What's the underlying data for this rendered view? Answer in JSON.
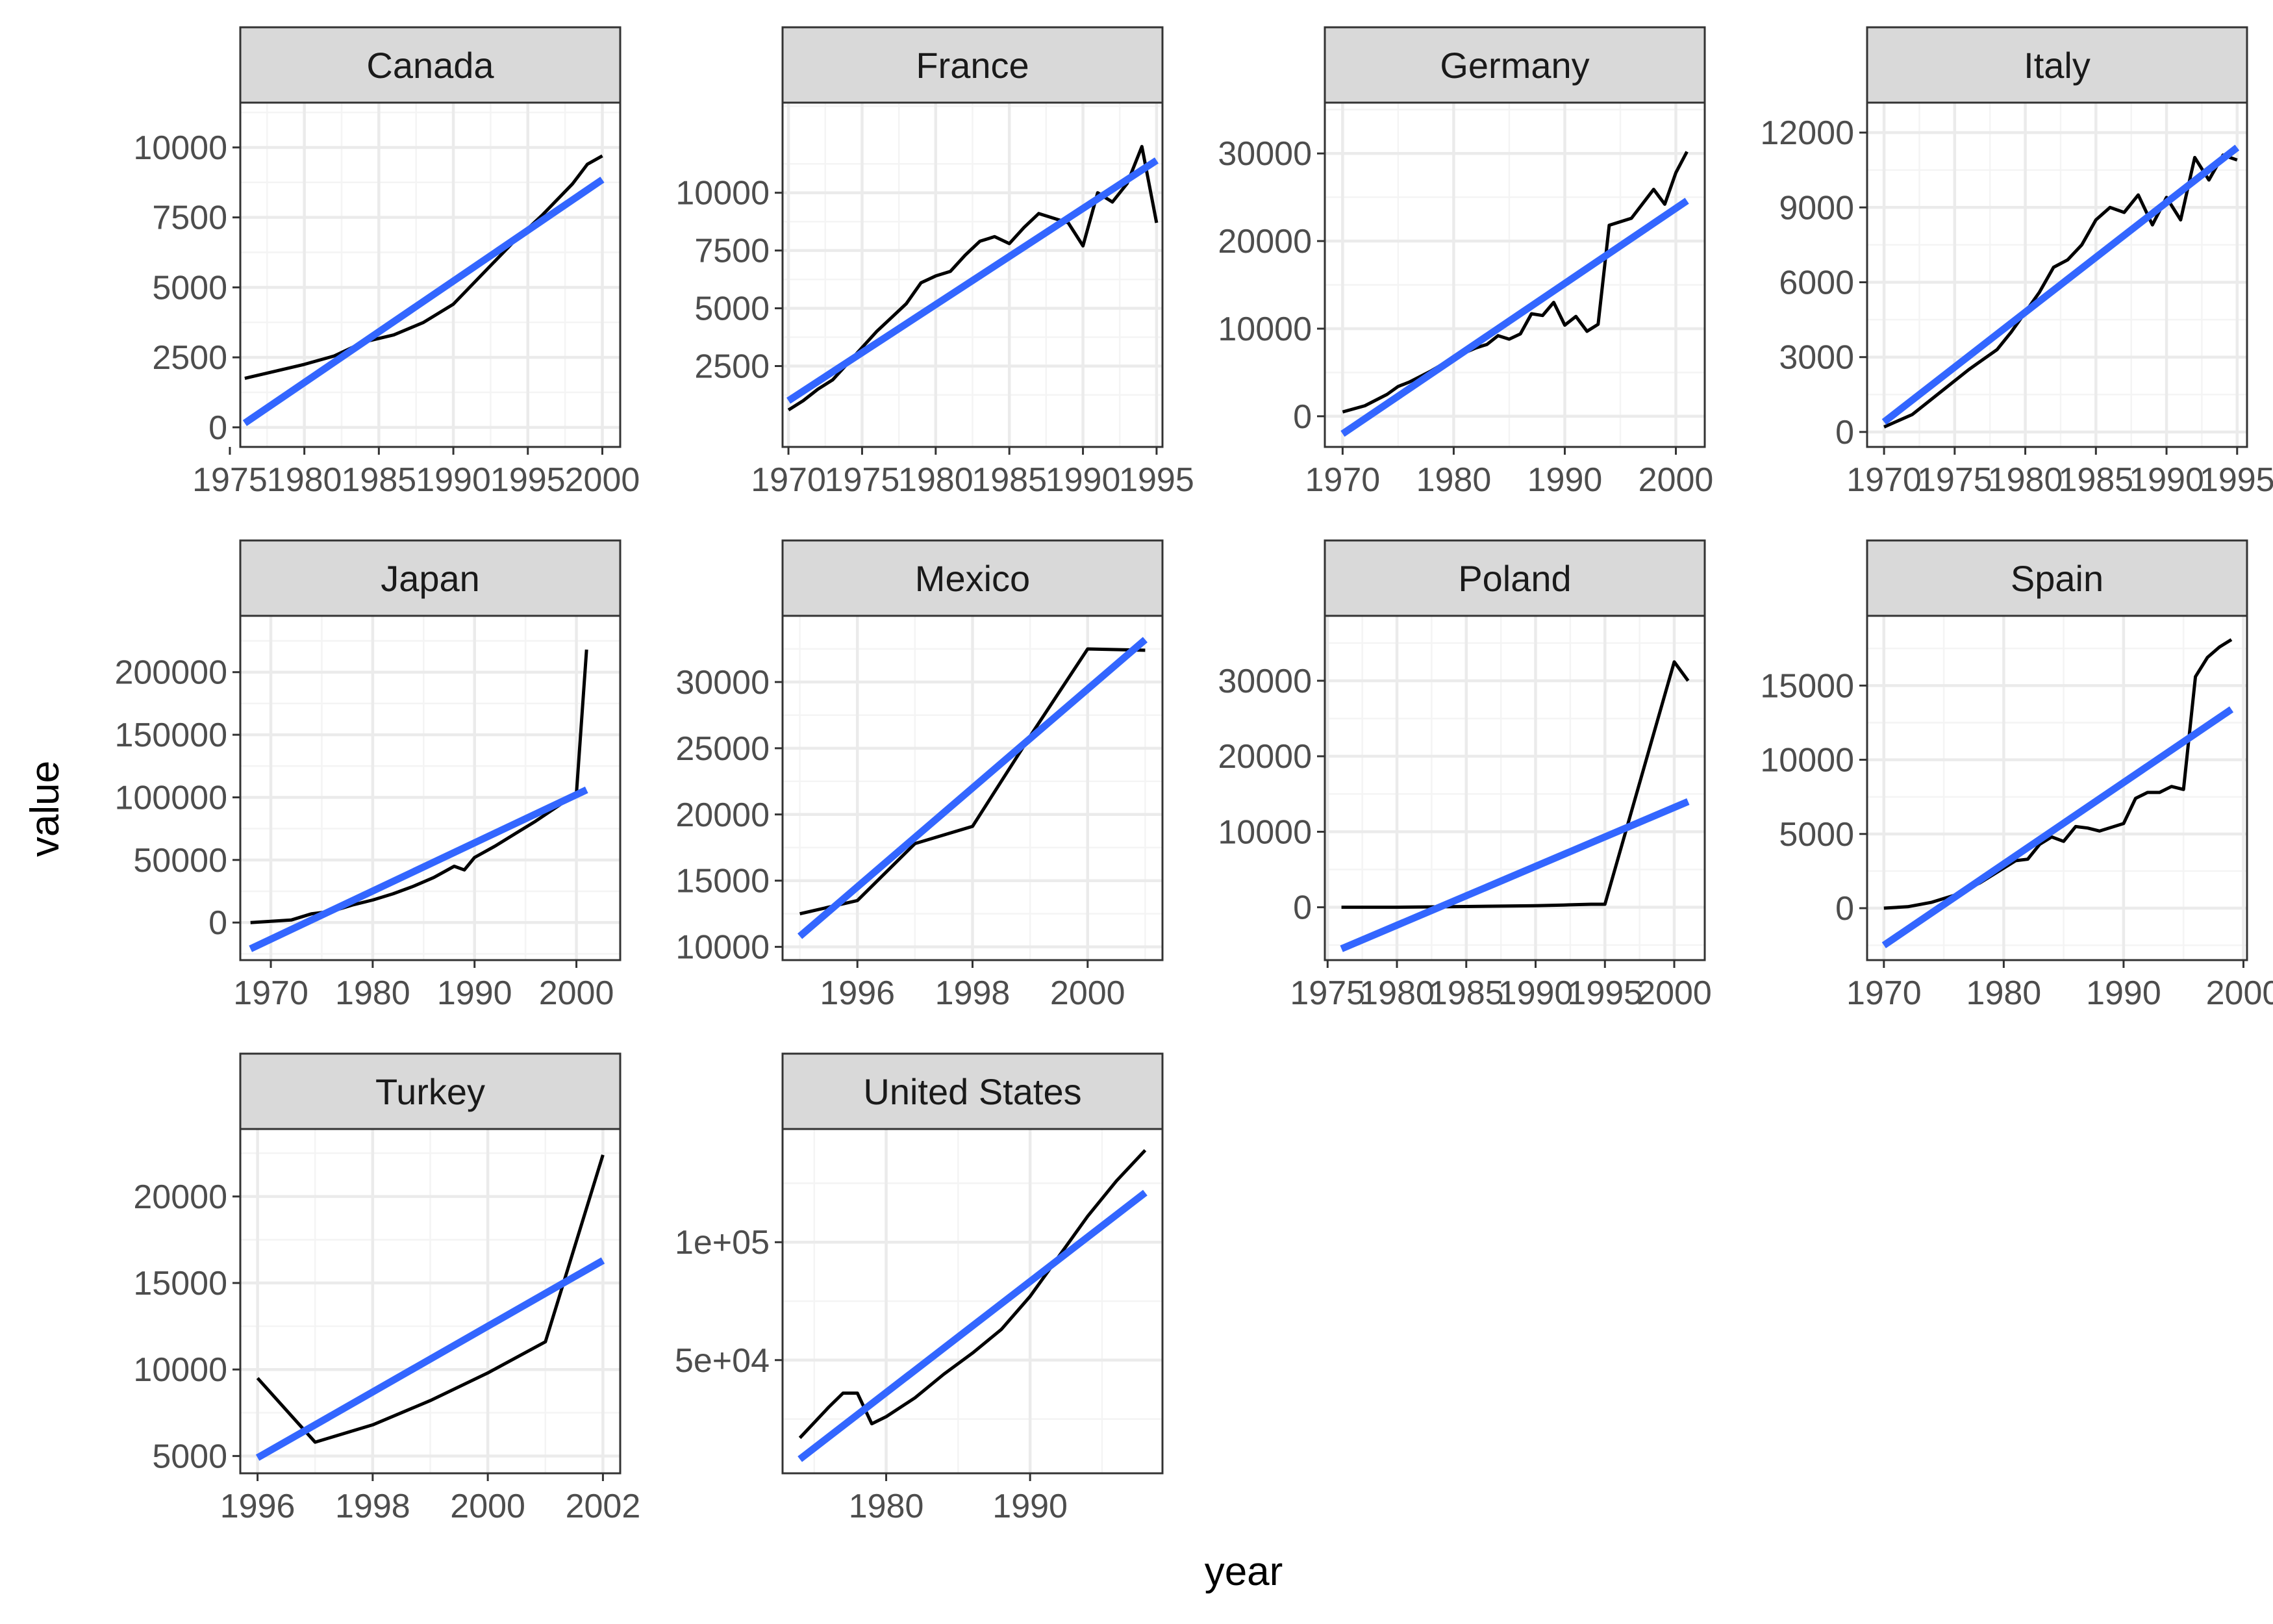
{
  "figure": {
    "xlabel": "year",
    "ylabel": "value"
  },
  "colors": {
    "panel_border": "#333333",
    "strip_fill": "#d9d9d9",
    "grid_major": "#ebebeb",
    "grid_minor": "#f4f4f4",
    "data_line": "#000000",
    "fit_line": "#3366ff"
  },
  "chart_data": [
    {
      "type": "line",
      "title": "Canada",
      "xlim": [
        1975.7,
        2001.2
      ],
      "ylim": [
        -700,
        11600
      ],
      "xticks": [
        1975,
        1980,
        1985,
        1990,
        1995,
        2000
      ],
      "yticks": [
        0,
        2500,
        5000,
        7500,
        10000
      ],
      "ytick_labels": [
        "0",
        "2500",
        "5000",
        "7500",
        "10000"
      ],
      "x": [
        1976,
        1978,
        1980,
        1982,
        1984,
        1986,
        1988,
        1990,
        1992,
        1994,
        1996,
        1998,
        1999,
        2000
      ],
      "y": [
        1750,
        2000,
        2250,
        2550,
        3050,
        3300,
        3750,
        4400,
        5500,
        6600,
        7600,
        8700,
        9400,
        9700
      ],
      "fit": {
        "x": [
          1976,
          2000
        ],
        "y": [
          150,
          8850
        ]
      }
    },
    {
      "type": "line",
      "title": "France",
      "xlim": [
        1969.6,
        1995.4
      ],
      "ylim": [
        -1000,
        13900
      ],
      "xticks": [
        1970,
        1975,
        1980,
        1985,
        1990,
        1995
      ],
      "yticks": [
        2500,
        5000,
        7500,
        10000
      ],
      "ytick_labels": [
        "2500",
        "5000",
        "7500",
        "10000"
      ],
      "x": [
        1970,
        1971,
        1972,
        1973,
        1974,
        1975,
        1976,
        1977,
        1978,
        1979,
        1980,
        1981,
        1982,
        1983,
        1984,
        1985,
        1986,
        1987,
        1988,
        1989,
        1990,
        1991,
        1992,
        1993,
        1994,
        1995
      ],
      "y": [
        600,
        1000,
        1500,
        1900,
        2600,
        3300,
        4000,
        4600,
        5200,
        6100,
        6400,
        6600,
        7300,
        7900,
        8100,
        7800,
        8500,
        9100,
        8900,
        8700,
        7700,
        10000,
        9600,
        10400,
        12000,
        8700
      ],
      "fit": {
        "x": [
          1970,
          1995
        ],
        "y": [
          1000,
          11400
        ]
      }
    },
    {
      "type": "line",
      "title": "Germany",
      "xlim": [
        1968.4,
        2002.6
      ],
      "ylim": [
        -3500,
        35800
      ],
      "xticks": [
        1970,
        1980,
        1990,
        2000
      ],
      "yticks": [
        0,
        10000,
        20000,
        30000
      ],
      "ytick_labels": [
        "0",
        "10000",
        "20000",
        "30000"
      ],
      "x": [
        1970,
        1972,
        1974,
        1975,
        1976,
        1978,
        1980,
        1982,
        1983,
        1984,
        1985,
        1986,
        1987,
        1988,
        1989,
        1990,
        1991,
        1992,
        1993,
        1994,
        1996,
        1998,
        1999,
        2000,
        2001
      ],
      "y": [
        500,
        1200,
        2500,
        3400,
        3900,
        5200,
        6700,
        7800,
        8200,
        9200,
        8800,
        9400,
        11700,
        11500,
        13000,
        10400,
        11400,
        9700,
        10500,
        21800,
        22600,
        25900,
        24200,
        27800,
        30200
      ],
      "fit": {
        "x": [
          1970,
          2001
        ],
        "y": [
          -2000,
          24600
        ]
      }
    },
    {
      "type": "line",
      "title": "Italy",
      "xlim": [
        1968.8,
        1995.7
      ],
      "ylim": [
        -600,
        13200
      ],
      "xticks": [
        1970,
        1975,
        1980,
        1985,
        1990,
        1995
      ],
      "yticks": [
        0,
        3000,
        6000,
        9000,
        12000
      ],
      "ytick_labels": [
        "0",
        "3000",
        "6000",
        "9000",
        "12000"
      ],
      "x": [
        1970,
        1972,
        1974,
        1976,
        1978,
        1979,
        1980,
        1981,
        1982,
        1983,
        1984,
        1985,
        1986,
        1987,
        1988,
        1989,
        1990,
        1991,
        1992,
        1993,
        1994,
        1995
      ],
      "y": [
        200,
        700,
        1600,
        2500,
        3300,
        4000,
        4800,
        5600,
        6600,
        6900,
        7500,
        8500,
        9000,
        8800,
        9500,
        8300,
        9400,
        8500,
        11000,
        10100,
        11100,
        10900
      ],
      "fit": {
        "x": [
          1970,
          1995
        ],
        "y": [
          400,
          11400
        ]
      }
    },
    {
      "type": "line",
      "title": "Japan",
      "xlim": [
        1967,
        2004.3
      ],
      "ylim": [
        -30000,
        245000
      ],
      "xticks": [
        1970,
        1980,
        1990,
        2000
      ],
      "yticks": [
        0,
        50000,
        100000,
        150000,
        200000
      ],
      "ytick_labels": [
        "0",
        "50000",
        "100000",
        "150000",
        "200000"
      ],
      "x": [
        1968,
        1970,
        1972,
        1974,
        1976,
        1978,
        1980,
        1982,
        1984,
        1986,
        1988,
        1989,
        1990,
        1992,
        1994,
        1996,
        1998,
        2000,
        2001
      ],
      "y": [
        0,
        1000,
        2000,
        7000,
        9000,
        14000,
        18000,
        23000,
        29000,
        36000,
        45000,
        42000,
        52000,
        61000,
        71000,
        81000,
        92000,
        103000,
        218000
      ],
      "fit": {
        "x": [
          1968,
          2001
        ],
        "y": [
          -21000,
          106000
        ]
      }
    },
    {
      "type": "line",
      "title": "Mexico",
      "xlim": [
        1994.7,
        2001.3
      ],
      "ylim": [
        9000,
        35000
      ],
      "xticks": [
        1996,
        1998,
        2000
      ],
      "yticks": [
        10000,
        15000,
        20000,
        25000,
        30000
      ],
      "ytick_labels": [
        "10000",
        "15000",
        "20000",
        "25000",
        "30000"
      ],
      "x": [
        1995,
        1996,
        1997,
        1998,
        1999,
        2000,
        2001
      ],
      "y": [
        12500,
        13500,
        17800,
        19100,
        25900,
        32500,
        32400
      ],
      "fit": {
        "x": [
          1995,
          2001
        ],
        "y": [
          10800,
          33200
        ]
      }
    },
    {
      "type": "line",
      "title": "Poland",
      "xlim": [
        1974.8,
        2002.2
      ],
      "ylim": [
        -7000,
        38600
      ],
      "xticks": [
        1975,
        1980,
        1985,
        1990,
        1995,
        2000
      ],
      "yticks": [
        0,
        10000,
        20000,
        30000
      ],
      "ytick_labels": [
        "0",
        "10000",
        "20000",
        "30000"
      ],
      "x": [
        1976,
        1980,
        1985,
        1990,
        1992,
        1994,
        1995,
        2000,
        2001
      ],
      "y": [
        0,
        0,
        100,
        200,
        300,
        400,
        400,
        32500,
        30000
      ],
      "fit": {
        "x": [
          1976,
          2001
        ],
        "y": [
          -5500,
          14000
        ]
      }
    },
    {
      "type": "line",
      "title": "Spain",
      "xlim": [
        1968.6,
        2000.3
      ],
      "ylim": [
        -3500,
        19700
      ],
      "xticks": [
        1970,
        1980,
        1990,
        2000
      ],
      "yticks": [
        0,
        5000,
        10000,
        15000
      ],
      "ytick_labels": [
        "0",
        "5000",
        "10000",
        "15000"
      ],
      "x": [
        1970,
        1972,
        1974,
        1976,
        1978,
        1980,
        1981,
        1982,
        1983,
        1984,
        1985,
        1986,
        1987,
        1988,
        1990,
        1991,
        1992,
        1993,
        1994,
        1995,
        1996,
        1997,
        1998,
        1999
      ],
      "y": [
        0,
        100,
        400,
        900,
        1700,
        2700,
        3200,
        3300,
        4300,
        4800,
        4500,
        5500,
        5400,
        5200,
        5700,
        7400,
        7800,
        7800,
        8200,
        8000,
        15600,
        16900,
        17600,
        18100
      ],
      "fit": {
        "x": [
          1970,
          1999
        ],
        "y": [
          -2500,
          13400
        ]
      }
    },
    {
      "type": "line",
      "title": "Turkey",
      "xlim": [
        1995.7,
        2002.3
      ],
      "ylim": [
        4000,
        23900
      ],
      "xticks": [
        1996,
        1998,
        2000,
        2002
      ],
      "yticks": [
        5000,
        10000,
        15000,
        20000
      ],
      "ytick_labels": [
        "5000",
        "10000",
        "15000",
        "20000"
      ],
      "x": [
        1996,
        1997,
        1998,
        1999,
        2000,
        2001,
        2002
      ],
      "y": [
        9500,
        5800,
        6800,
        8200,
        9800,
        11600,
        22400
      ],
      "fit": {
        "x": [
          1996,
          2002
        ],
        "y": [
          4900,
          16300
        ]
      }
    },
    {
      "type": "line",
      "title": "United States",
      "xlim": [
        1972.8,
        1999.2
      ],
      "ylim": [
        2000,
        148000
      ],
      "xticks": [
        1980,
        1990
      ],
      "yticks": [
        50000,
        100000
      ],
      "ytick_labels": [
        "5e+04",
        "1e+05"
      ],
      "x": [
        1974,
        1976,
        1977,
        1978,
        1979,
        1980,
        1982,
        1984,
        1986,
        1988,
        1990,
        1992,
        1994,
        1996,
        1998
      ],
      "y": [
        17000,
        30000,
        36000,
        36000,
        23000,
        26000,
        34000,
        44000,
        53000,
        63000,
        77000,
        94000,
        111000,
        126000,
        139000
      ],
      "fit": {
        "x": [
          1974,
          1998
        ],
        "y": [
          8000,
          121000
        ]
      }
    }
  ]
}
